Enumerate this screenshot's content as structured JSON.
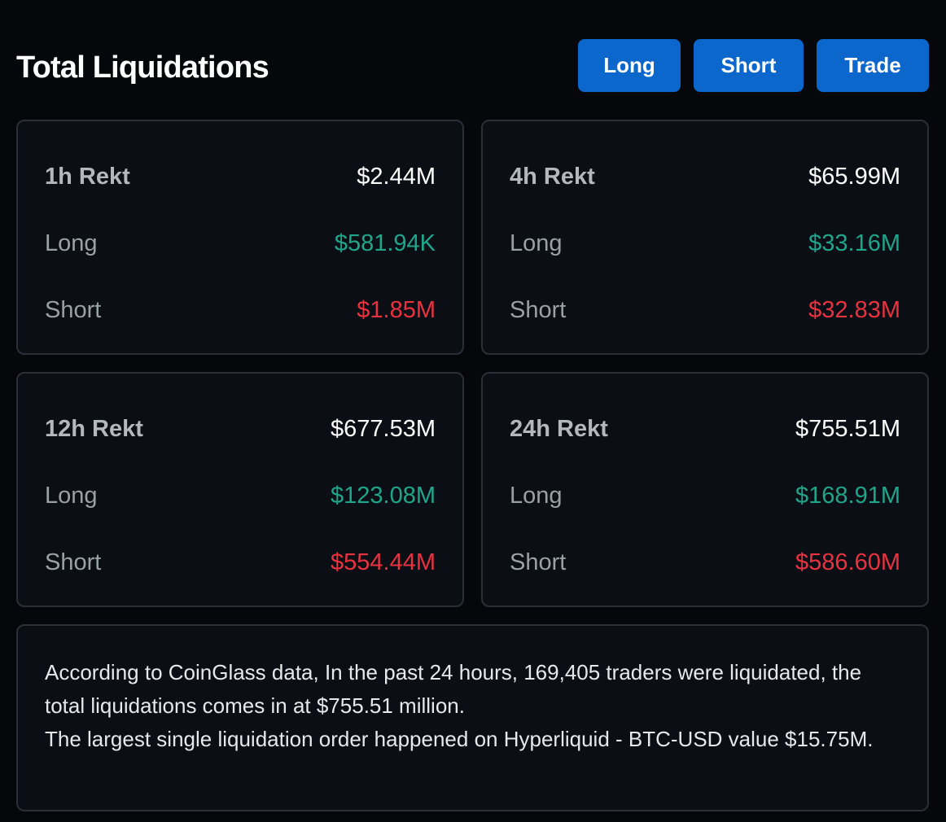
{
  "header": {
    "title": "Total Liquidations",
    "buttons": {
      "long": "Long",
      "short": "Short",
      "trade": "Trade"
    }
  },
  "colors": {
    "background": "#05070b",
    "card": "#0b0f15",
    "border": "#2c3036",
    "accent_button": "#0b67cc",
    "long_green": "#1fa58a",
    "short_red": "#e8323f"
  },
  "cards": {
    "h1": {
      "title": "1h Rekt",
      "total": "$2.44M",
      "long_label": "Long",
      "long": "$581.94K",
      "short_label": "Short",
      "short": "$1.85M"
    },
    "h4": {
      "title": "4h Rekt",
      "total": "$65.99M",
      "long_label": "Long",
      "long": "$33.16M",
      "short_label": "Short",
      "short": "$32.83M"
    },
    "h12": {
      "title": "12h Rekt",
      "total": "$677.53M",
      "long_label": "Long",
      "long": "$123.08M",
      "short_label": "Short",
      "short": "$554.44M"
    },
    "h24": {
      "title": "24h Rekt",
      "total": "$755.51M",
      "long_label": "Long",
      "long": "$168.91M",
      "short_label": "Short",
      "short": "$586.60M"
    }
  },
  "summary": {
    "line1": "According to CoinGlass data, In the past 24 hours, 169,405 traders were liquidated, the total liquidations comes in at $755.51 million.",
    "line2": "The largest single liquidation order happened on Hyperliquid - BTC-USD value $15.75M."
  }
}
